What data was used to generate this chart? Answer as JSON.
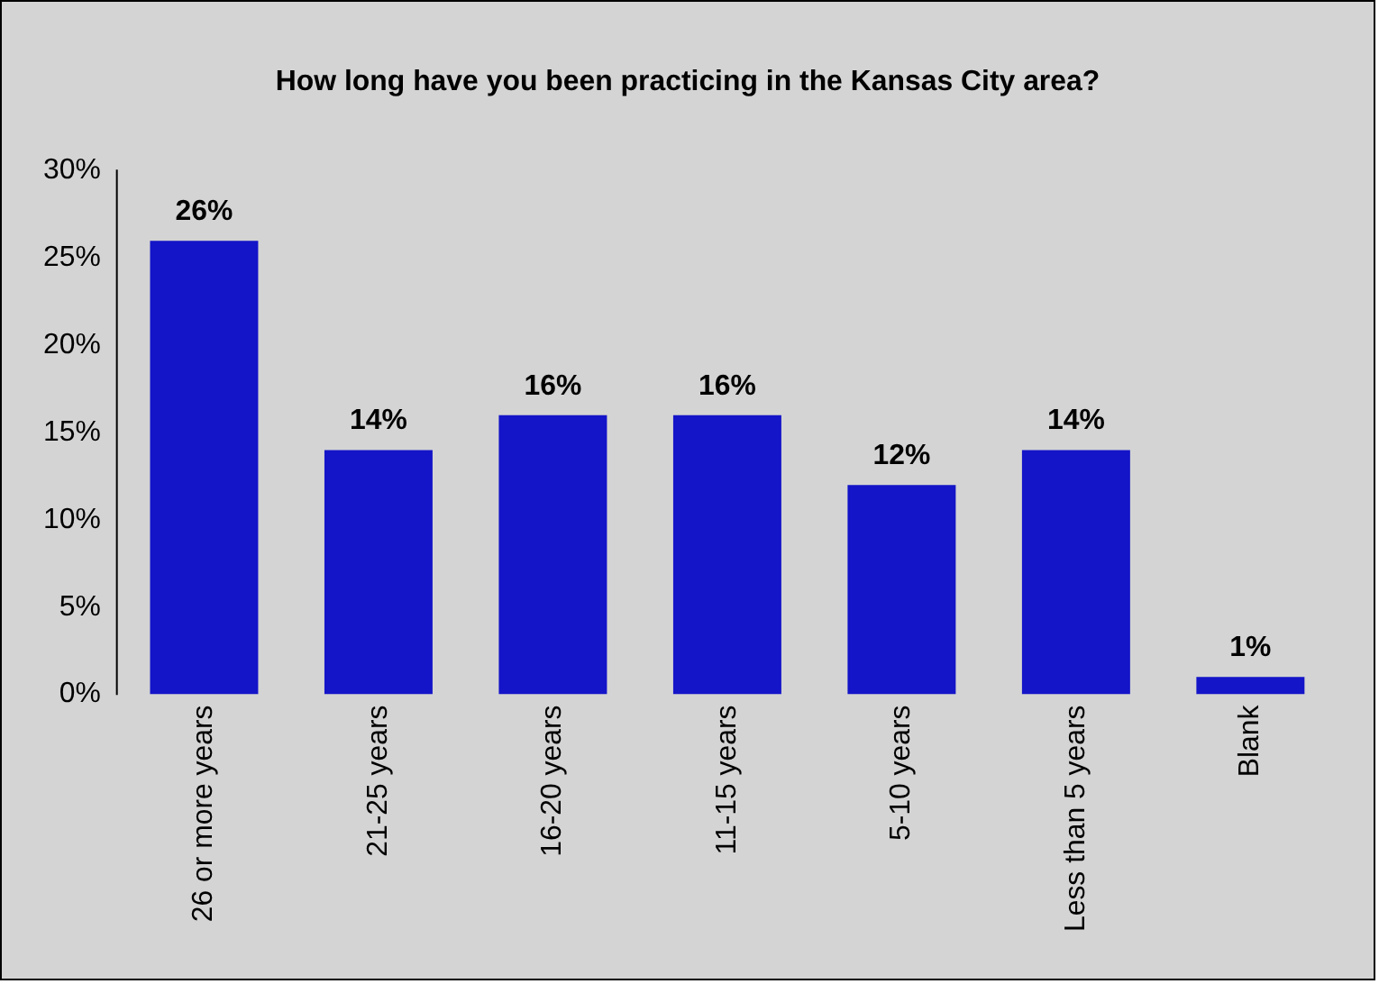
{
  "chart_data": {
    "type": "bar",
    "title": "How long have you been practicing in the Kansas City area?",
    "categories": [
      "26 or more years",
      "21-25 years",
      "16-20 years",
      "11-15 years",
      "5-10 years",
      "Less than 5 years",
      "Blank"
    ],
    "values": [
      26,
      14,
      16,
      16,
      12,
      14,
      1
    ],
    "value_labels": [
      "26%",
      "14%",
      "16%",
      "16%",
      "12%",
      "14%",
      "1%"
    ],
    "color": "#1414c8",
    "ylim": [
      0,
      30
    ],
    "yticks": [
      {
        "value": 0,
        "label": "0%"
      },
      {
        "value": 5,
        "label": "5%"
      },
      {
        "value": 10,
        "label": "10%"
      },
      {
        "value": 15,
        "label": "15%"
      },
      {
        "value": 20,
        "label": "20%"
      },
      {
        "value": 25,
        "label": "25%"
      },
      {
        "value": 30,
        "label": "30%"
      }
    ],
    "grid": false,
    "legend": false
  }
}
